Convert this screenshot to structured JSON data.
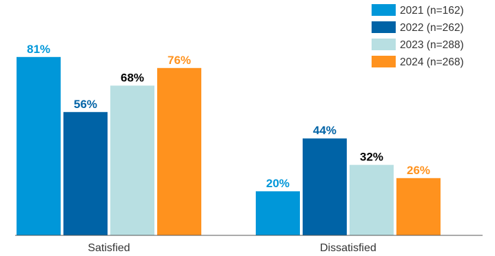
{
  "chart_data": {
    "type": "bar",
    "categories": [
      "Satisfied",
      "Dissatisfied"
    ],
    "series": [
      {
        "name": "2021 (n=162)",
        "color": "#0097d9",
        "label_color": "#0097d9",
        "values": [
          81,
          20
        ],
        "labels": [
          "81%",
          "20%"
        ]
      },
      {
        "name": "2022 (n=262)",
        "color": "#0063a6",
        "label_color": "#0063a6",
        "values": [
          56,
          44
        ],
        "labels": [
          "56%",
          "44%"
        ]
      },
      {
        "name": "2023 (n=288)",
        "color": "#b8dfe2",
        "label_color": "#000000",
        "values": [
          68,
          32
        ],
        "labels": [
          "68%",
          "32%"
        ]
      },
      {
        "name": "2024 (n=268)",
        "color": "#ff921e",
        "label_color": "#ff921e",
        "values": [
          76,
          26
        ],
        "labels": [
          "76%",
          "26%"
        ]
      }
    ],
    "value_suffix": "%",
    "ylim": [
      0,
      100
    ],
    "grid": false,
    "legend_position": "top-right",
    "title": "",
    "xlabel": "",
    "ylabel": ""
  }
}
